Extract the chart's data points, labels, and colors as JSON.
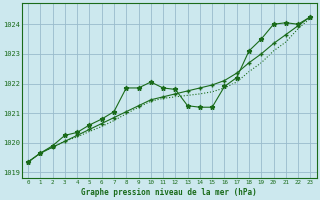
{
  "xlabel": "Graphe pression niveau de la mer (hPa)",
  "bg_color": "#cce8ee",
  "grid_color": "#99bbcc",
  "line_color": "#1a6b1a",
  "ylim": [
    1018.8,
    1024.7
  ],
  "xlim": [
    -0.5,
    23.5
  ],
  "yticks": [
    1019,
    1020,
    1021,
    1022,
    1023,
    1024
  ],
  "xticks": [
    0,
    1,
    2,
    3,
    4,
    5,
    6,
    7,
    8,
    9,
    10,
    11,
    12,
    13,
    14,
    15,
    16,
    17,
    18,
    19,
    20,
    21,
    22,
    23
  ],
  "wavy_x": [
    0,
    1,
    2,
    3,
    4,
    5,
    6,
    7,
    8,
    9,
    10,
    11,
    12,
    13,
    14,
    15,
    16,
    17,
    18,
    19,
    20,
    21,
    22,
    23
  ],
  "wavy_y": [
    1019.35,
    1019.65,
    1019.9,
    1020.25,
    1020.35,
    1020.6,
    1020.8,
    1021.05,
    1021.85,
    1021.85,
    1022.05,
    1021.85,
    1021.8,
    1021.25,
    1021.2,
    1021.2,
    1021.9,
    1022.2,
    1023.1,
    1023.5,
    1024.0,
    1024.05,
    1024.0,
    1024.25
  ],
  "diag_x": [
    0,
    1,
    2,
    3,
    4,
    5,
    6,
    7,
    8,
    9,
    10,
    11,
    12,
    13,
    14,
    15,
    16,
    17,
    18,
    19,
    20,
    21,
    22,
    23
  ],
  "diag_y": [
    1019.35,
    1019.65,
    1019.85,
    1020.05,
    1020.25,
    1020.45,
    1020.65,
    1020.85,
    1021.05,
    1021.25,
    1021.45,
    1021.55,
    1021.65,
    1021.75,
    1021.85,
    1021.95,
    1022.1,
    1022.35,
    1022.7,
    1023.0,
    1023.35,
    1023.65,
    1023.95,
    1024.25
  ],
  "dot_x": [
    0,
    1,
    2,
    3,
    4,
    5,
    6,
    7,
    8,
    9,
    10,
    11,
    12,
    13,
    14,
    15,
    16,
    17,
    18,
    19,
    20,
    21,
    22,
    23
  ],
  "dot_y": [
    1019.35,
    1019.65,
    1019.85,
    1020.05,
    1020.2,
    1020.38,
    1020.55,
    1020.75,
    1020.98,
    1021.2,
    1021.4,
    1021.5,
    1021.55,
    1021.6,
    1021.65,
    1021.72,
    1021.85,
    1022.05,
    1022.4,
    1022.7,
    1023.1,
    1023.4,
    1023.85,
    1024.2
  ]
}
